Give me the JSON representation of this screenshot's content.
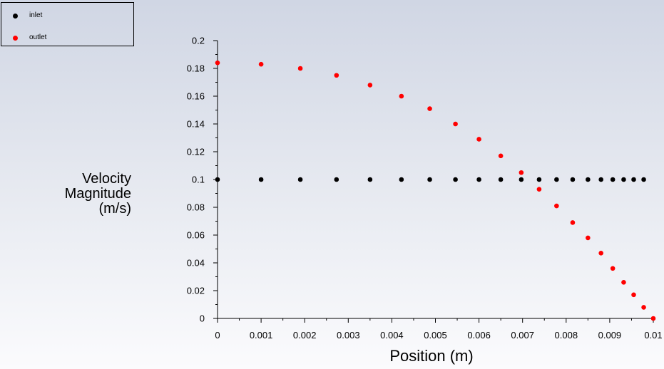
{
  "chart_data": {
    "type": "scatter",
    "xlabel": "Position (m)",
    "ylabel_lines": [
      "Velocity",
      "Magnitude",
      "(m/s)"
    ],
    "xlim": [
      0,
      0.01
    ],
    "ylim": [
      0,
      0.2
    ],
    "xticks": [
      "0",
      "0.001",
      "0.002",
      "0.003",
      "0.004",
      "0.005",
      "0.006",
      "0.007",
      "0.008",
      "0.009",
      "0.01"
    ],
    "yticks": [
      "0",
      "0.02",
      "0.04",
      "0.06",
      "0.08",
      "0.1",
      "0.12",
      "0.14",
      "0.16",
      "0.18",
      "0.2"
    ],
    "legend_position": "top-left",
    "grid": false,
    "series": [
      {
        "name": "inlet",
        "color": "#000000",
        "x": [
          0,
          0.001,
          0.0019,
          0.00273,
          0.0035,
          0.00422,
          0.00487,
          0.00546,
          0.006,
          0.0065,
          0.00697,
          0.00738,
          0.00778,
          0.00815,
          0.0085,
          0.0088,
          0.00907,
          0.00932,
          0.00955,
          0.00978
        ],
        "y": [
          0.1,
          0.1,
          0.1,
          0.1,
          0.1,
          0.1,
          0.1,
          0.1,
          0.1,
          0.1,
          0.1,
          0.1,
          0.1,
          0.1,
          0.1,
          0.1,
          0.1,
          0.1,
          0.1,
          0.1
        ]
      },
      {
        "name": "outlet",
        "color": "#ff0000",
        "x": [
          0,
          0.001,
          0.0019,
          0.00273,
          0.0035,
          0.00422,
          0.00487,
          0.00546,
          0.006,
          0.0065,
          0.00697,
          0.00738,
          0.00778,
          0.00815,
          0.0085,
          0.0088,
          0.00907,
          0.00932,
          0.00955,
          0.00978,
          0.01
        ],
        "y": [
          0.184,
          0.183,
          0.18,
          0.175,
          0.168,
          0.16,
          0.151,
          0.14,
          0.129,
          0.117,
          0.105,
          0.093,
          0.081,
          0.069,
          0.058,
          0.047,
          0.036,
          0.026,
          0.017,
          0.008,
          0.0
        ]
      }
    ]
  }
}
